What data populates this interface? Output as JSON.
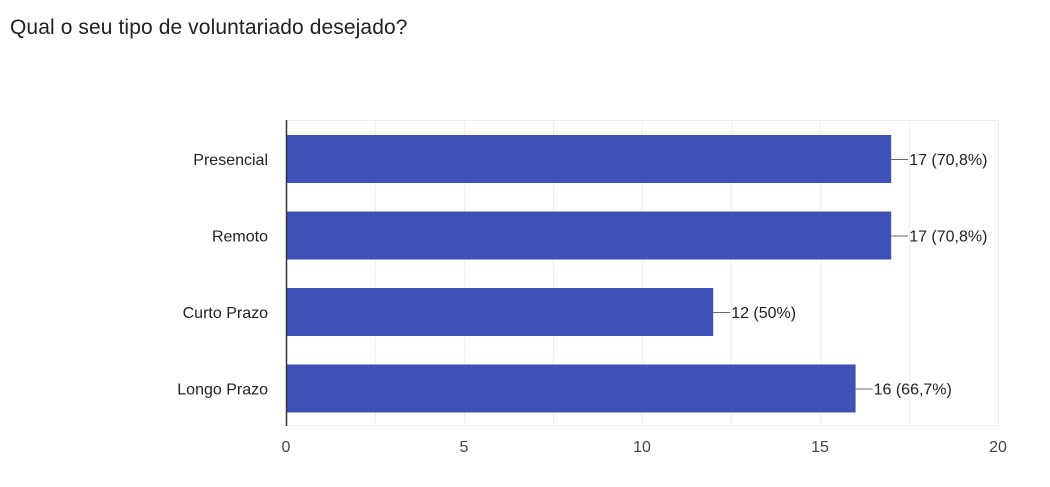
{
  "question": {
    "title": "Qual o seu tipo de voluntariado desejado?"
  },
  "chart_data": {
    "type": "bar",
    "orientation": "horizontal",
    "categories": [
      "Presencial",
      "Remoto",
      "Curto Prazo",
      "Longo Prazo"
    ],
    "values": [
      17,
      17,
      12,
      16
    ],
    "data_labels": [
      "17 (70,8%)",
      "17 (70,8%)",
      "12 (50%)",
      "16 (66,7%)"
    ],
    "xlim": [
      0,
      20
    ],
    "x_ticks": [
      "0",
      "5",
      "10",
      "15",
      "20"
    ],
    "grid": true,
    "legend": "none",
    "colors": {
      "bar": "#3f51b5",
      "grid": "#ececec",
      "axis": "#333333",
      "text": "#222222",
      "tick_text": "#444444"
    }
  }
}
